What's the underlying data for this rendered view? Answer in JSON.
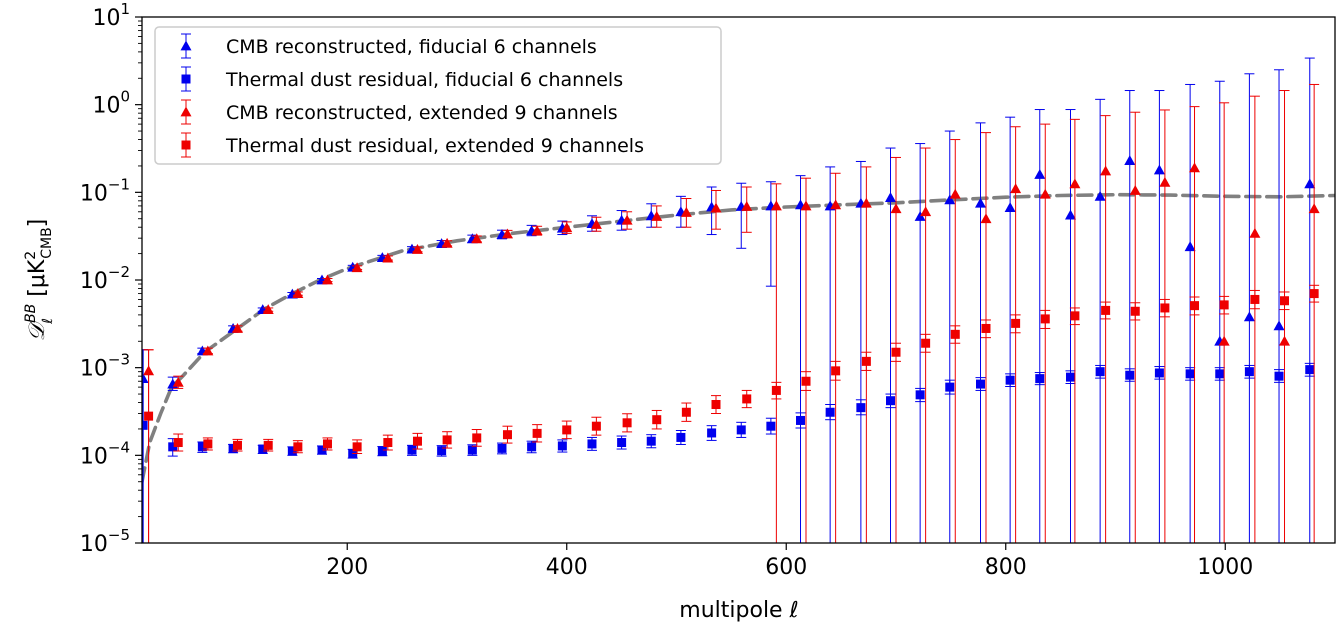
{
  "chart_data": {
    "type": "scatter",
    "xlabel": "multipole ℓ",
    "ylabel": "D_ℓ^BB [μK²_CMB]",
    "xlim": [
      13,
      1100
    ],
    "ylim": [
      1e-05,
      10
    ],
    "yscale": "log",
    "x_ticks": [
      200,
      400,
      600,
      800,
      1000
    ],
    "y_ticks": [
      {
        "value": 1e-05,
        "base": "10",
        "exp": "−5"
      },
      {
        "value": 0.0001,
        "base": "10",
        "exp": "−4"
      },
      {
        "value": 0.001,
        "base": "10",
        "exp": "−3"
      },
      {
        "value": 0.01,
        "base": "10",
        "exp": "−2"
      },
      {
        "value": 0.1,
        "base": "10",
        "exp": "−1"
      },
      {
        "value": 1,
        "base": "10",
        "exp": "0"
      },
      {
        "value": 10,
        "base": "10",
        "exp": "1"
      }
    ],
    "legend_position": "top-left",
    "legend": [
      "CMB reconstructed, fiducial 6 channels",
      "Thermal dust residual, fiducial 6 channels",
      "CMB reconstructed, extended 9 channels",
      "Thermal dust residual, extended 9 channels"
    ],
    "colors": {
      "blue": "#0000ee",
      "red": "#ee0000",
      "model": "#808080"
    },
    "model_curve": {
      "style": "dashed",
      "x": [
        13,
        20,
        30,
        40,
        50,
        70,
        100,
        125,
        150,
        175,
        200,
        250,
        300,
        350,
        400,
        450,
        500,
        550,
        600,
        650,
        700,
        750,
        800,
        850,
        900,
        950,
        1000,
        1050,
        1100
      ],
      "y": [
        5e-05,
        0.00014,
        0.0003,
        0.0006,
        0.0008,
        0.0015,
        0.0028,
        0.0047,
        0.007,
        0.01,
        0.0135,
        0.0215,
        0.028,
        0.034,
        0.04,
        0.047,
        0.055,
        0.063,
        0.068,
        0.072,
        0.076,
        0.082,
        0.088,
        0.092,
        0.094,
        0.093,
        0.09,
        0.089,
        0.092
      ]
    },
    "series": [
      {
        "name": "CMB reconstructed, fiducial 6 channels",
        "color": "blue",
        "marker": "triangle",
        "points": [
          [
            14,
            0.00075,
            1e-05,
            0.0016
          ],
          [
            41,
            0.00065,
            0.00055,
            0.00078
          ],
          [
            68,
            0.00155,
            0.00145,
            0.00167
          ],
          [
            96,
            0.0028,
            0.0026,
            0.003
          ],
          [
            123,
            0.0046,
            0.0044,
            0.0048
          ],
          [
            150,
            0.0069,
            0.0066,
            0.0072
          ],
          [
            177,
            0.01,
            0.0096,
            0.0104
          ],
          [
            205,
            0.014,
            0.0133,
            0.0147
          ],
          [
            232,
            0.018,
            0.017,
            0.0191
          ],
          [
            259,
            0.0225,
            0.021,
            0.024
          ],
          [
            286,
            0.026,
            0.024,
            0.0282
          ],
          [
            314,
            0.0295,
            0.0268,
            0.0325
          ],
          [
            341,
            0.033,
            0.0295,
            0.037
          ],
          [
            368,
            0.0365,
            0.032,
            0.042
          ],
          [
            396,
            0.039,
            0.033,
            0.047
          ],
          [
            423,
            0.044,
            0.036,
            0.054
          ],
          [
            450,
            0.048,
            0.037,
            0.062
          ],
          [
            477,
            0.054,
            0.04,
            0.074
          ],
          [
            504,
            0.06,
            0.04,
            0.09
          ],
          [
            532,
            0.068,
            0.033,
            0.115
          ],
          [
            559,
            0.069,
            0.023,
            0.127
          ],
          [
            586,
            0.07,
            0.0085,
            0.132
          ],
          [
            613,
            0.072,
            1e-05,
            0.155
          ],
          [
            640,
            0.07,
            1e-05,
            0.195
          ],
          [
            668,
            0.075,
            1e-05,
            0.225
          ],
          [
            695,
            0.087,
            1e-05,
            0.32
          ],
          [
            722,
            0.053,
            1e-05,
            0.36
          ],
          [
            749,
            0.082,
            1e-05,
            0.5
          ],
          [
            777,
            0.075,
            1e-05,
            0.62
          ],
          [
            804,
            0.067,
            1e-05,
            0.72
          ],
          [
            831,
            0.16,
            1e-05,
            0.88
          ],
          [
            859,
            0.055,
            1e-05,
            0.88
          ],
          [
            886,
            0.09,
            1e-05,
            1.15
          ],
          [
            913,
            0.23,
            1e-05,
            1.45
          ],
          [
            940,
            0.18,
            1e-05,
            1.45
          ],
          [
            968,
            0.024,
            1e-05,
            1.7
          ],
          [
            995,
            0.002,
            1e-05,
            1.85
          ],
          [
            1022,
            0.0038,
            1e-05,
            2.25
          ],
          [
            1049,
            0.003,
            1e-05,
            2.5
          ],
          [
            1077,
            0.125,
            1e-05,
            3.4
          ]
        ]
      },
      {
        "name": "Thermal dust residual, fiducial 6 channels",
        "color": "blue",
        "marker": "square",
        "points": [
          [
            14,
            0.00022,
            1e-05,
            0.0016
          ],
          [
            41,
            0.000125,
            9.8e-05,
            0.000155
          ],
          [
            68,
            0.000125,
            0.000108,
            0.000142
          ],
          [
            96,
            0.00012,
            0.000107,
            0.000133
          ],
          [
            123,
            0.000118,
            0.000105,
            0.00013
          ],
          [
            150,
            0.000112,
            0.0001,
            0.000125
          ],
          [
            177,
            0.000115,
            0.000103,
            0.000128
          ],
          [
            205,
            0.000105,
            9.3e-05,
            0.000117
          ],
          [
            232,
            0.000112,
            9.9e-05,
            0.000126
          ],
          [
            259,
            0.000115,
            0.0001,
            0.00013
          ],
          [
            286,
            0.000113,
            9.8e-05,
            0.000129
          ],
          [
            314,
            0.000115,
            0.0001,
            0.000132
          ],
          [
            341,
            0.00012,
            0.000104,
            0.000138
          ],
          [
            368,
            0.000125,
            0.000107,
            0.000145
          ],
          [
            396,
            0.000128,
            0.000109,
            0.00015
          ],
          [
            423,
            0.000135,
            0.000114,
            0.00016
          ],
          [
            450,
            0.00014,
            0.000118,
            0.000166
          ],
          [
            477,
            0.000145,
            0.000122,
            0.000172
          ],
          [
            504,
            0.00016,
            0.000133,
            0.000192
          ],
          [
            532,
            0.00018,
            0.000148,
            0.000218
          ],
          [
            559,
            0.000195,
            0.00016,
            0.000238
          ],
          [
            586,
            0.000215,
            0.000175,
            0.000265
          ],
          [
            613,
            0.00025,
            0.000205,
            0.000305
          ],
          [
            640,
            0.00031,
            0.000255,
            0.00038
          ],
          [
            668,
            0.00035,
            0.00029,
            0.00043
          ],
          [
            695,
            0.00042,
            0.00035,
            0.0005
          ],
          [
            722,
            0.00049,
            0.00041,
            0.00058
          ],
          [
            749,
            0.0006,
            0.0005,
            0.00072
          ],
          [
            777,
            0.00065,
            0.00055,
            0.00077
          ],
          [
            804,
            0.00072,
            0.00061,
            0.00085
          ],
          [
            831,
            0.00075,
            0.00064,
            0.00088
          ],
          [
            859,
            0.00078,
            0.00066,
            0.00092
          ],
          [
            886,
            0.0009,
            0.00076,
            0.00106
          ],
          [
            913,
            0.00082,
            0.0007,
            0.00097
          ],
          [
            940,
            0.00087,
            0.00074,
            0.00103
          ],
          [
            968,
            0.00085,
            0.00072,
            0.001
          ],
          [
            995,
            0.00085,
            0.00072,
            0.001
          ],
          [
            1022,
            0.0009,
            0.00076,
            0.00106
          ],
          [
            1049,
            0.0008,
            0.00068,
            0.00095
          ],
          [
            1077,
            0.00095,
            0.0008,
            0.00112
          ]
        ]
      },
      {
        "name": "CMB reconstructed, extended 9 channels",
        "color": "red",
        "marker": "triangle",
        "points": [
          [
            19,
            0.00092,
            1e-05,
            0.0016
          ],
          [
            46,
            0.00068,
            0.00058,
            0.0008
          ],
          [
            73,
            0.00155,
            0.00145,
            0.00167
          ],
          [
            100,
            0.0028,
            0.0026,
            0.003
          ],
          [
            128,
            0.0046,
            0.0044,
            0.0048
          ],
          [
            155,
            0.007,
            0.0067,
            0.0073
          ],
          [
            182,
            0.01,
            0.0096,
            0.0104
          ],
          [
            209,
            0.0138,
            0.0132,
            0.0145
          ],
          [
            237,
            0.0178,
            0.0169,
            0.0188
          ],
          [
            264,
            0.0223,
            0.021,
            0.0237
          ],
          [
            291,
            0.0262,
            0.0245,
            0.028
          ],
          [
            318,
            0.0295,
            0.0273,
            0.0318
          ],
          [
            346,
            0.0335,
            0.0305,
            0.0368
          ],
          [
            373,
            0.0365,
            0.0325,
            0.041
          ],
          [
            400,
            0.0395,
            0.034,
            0.046
          ],
          [
            427,
            0.043,
            0.036,
            0.052
          ],
          [
            455,
            0.048,
            0.038,
            0.06
          ],
          [
            482,
            0.053,
            0.04,
            0.07
          ],
          [
            509,
            0.059,
            0.04,
            0.085
          ],
          [
            536,
            0.066,
            0.038,
            0.105
          ],
          [
            564,
            0.069,
            0.035,
            0.115
          ],
          [
            591,
            0.07,
            1e-05,
            0.125
          ],
          [
            618,
            0.07,
            1e-05,
            0.145
          ],
          [
            645,
            0.072,
            1e-05,
            0.165
          ],
          [
            673,
            0.075,
            1e-05,
            0.195
          ],
          [
            700,
            0.065,
            1e-05,
            0.25
          ],
          [
            727,
            0.06,
            1e-05,
            0.32
          ],
          [
            754,
            0.095,
            1e-05,
            0.4
          ],
          [
            782,
            0.05,
            1e-05,
            0.48
          ],
          [
            809,
            0.11,
            1e-05,
            0.56
          ],
          [
            836,
            0.095,
            1e-05,
            0.6
          ],
          [
            863,
            0.125,
            1e-05,
            0.68
          ],
          [
            891,
            0.175,
            1e-05,
            0.75
          ],
          [
            918,
            0.105,
            1e-05,
            0.82
          ],
          [
            945,
            0.13,
            1e-05,
            0.87
          ],
          [
            972,
            0.19,
            1e-05,
            0.95
          ],
          [
            999,
            0.002,
            1e-05,
            1.05
          ],
          [
            1027,
            0.034,
            1e-05,
            1.25
          ],
          [
            1054,
            0.002,
            1e-05,
            1.45
          ],
          [
            1081,
            0.065,
            1e-05,
            1.7
          ]
        ]
      },
      {
        "name": "Thermal dust residual, extended 9 channels",
        "color": "red",
        "marker": "square",
        "points": [
          [
            19,
            0.00028,
            1e-05,
            0.0016
          ],
          [
            46,
            0.00014,
            0.000112,
            0.000175
          ],
          [
            73,
            0.000135,
            0.000115,
            0.000158
          ],
          [
            100,
            0.00013,
            0.000112,
            0.000152
          ],
          [
            128,
            0.00013,
            0.000112,
            0.000152
          ],
          [
            155,
            0.000125,
            0.000107,
            0.000147
          ],
          [
            182,
            0.000135,
            0.000115,
            0.000158
          ],
          [
            209,
            0.000125,
            0.000105,
            0.00015
          ],
          [
            237,
            0.00014,
            0.000115,
            0.00017
          ],
          [
            264,
            0.000145,
            0.000118,
            0.000178
          ],
          [
            291,
            0.00015,
            0.000121,
            0.000186
          ],
          [
            318,
            0.000158,
            0.000127,
            0.000197
          ],
          [
            346,
            0.000172,
            0.000138,
            0.000215
          ],
          [
            373,
            0.000178,
            0.000142,
            0.000224
          ],
          [
            400,
            0.000195,
            0.000155,
            0.000246
          ],
          [
            427,
            0.000215,
            0.00017,
            0.000272
          ],
          [
            455,
            0.000235,
            0.000185,
            0.000298
          ],
          [
            482,
            0.000255,
            0.0002,
            0.000325
          ],
          [
            509,
            0.00031,
            0.000244,
            0.000395
          ],
          [
            536,
            0.00038,
            0.0003,
            0.00048
          ],
          [
            564,
            0.00044,
            0.00035,
            0.00055
          ],
          [
            591,
            0.00055,
            0.00044,
            0.00068
          ],
          [
            618,
            0.0007,
            0.00055,
            0.0009
          ],
          [
            645,
            0.00092,
            0.00072,
            0.00118
          ],
          [
            673,
            0.00118,
            0.00093,
            0.0015
          ],
          [
            700,
            0.0015,
            0.00118,
            0.0019
          ],
          [
            727,
            0.0019,
            0.0015,
            0.0024
          ],
          [
            754,
            0.0024,
            0.0019,
            0.003
          ],
          [
            782,
            0.0028,
            0.0022,
            0.0035
          ],
          [
            809,
            0.0032,
            0.0025,
            0.004
          ],
          [
            836,
            0.0036,
            0.0028,
            0.0045
          ],
          [
            863,
            0.0039,
            0.0031,
            0.0048
          ],
          [
            891,
            0.0045,
            0.0036,
            0.0056
          ],
          [
            918,
            0.0044,
            0.0035,
            0.0055
          ],
          [
            945,
            0.0048,
            0.0038,
            0.006
          ],
          [
            972,
            0.0051,
            0.004,
            0.0064
          ],
          [
            999,
            0.0052,
            0.0041,
            0.0065
          ],
          [
            1027,
            0.006,
            0.0047,
            0.0076
          ],
          [
            1054,
            0.0058,
            0.0046,
            0.0073
          ],
          [
            1081,
            0.007,
            0.0056,
            0.0087
          ]
        ]
      }
    ]
  }
}
